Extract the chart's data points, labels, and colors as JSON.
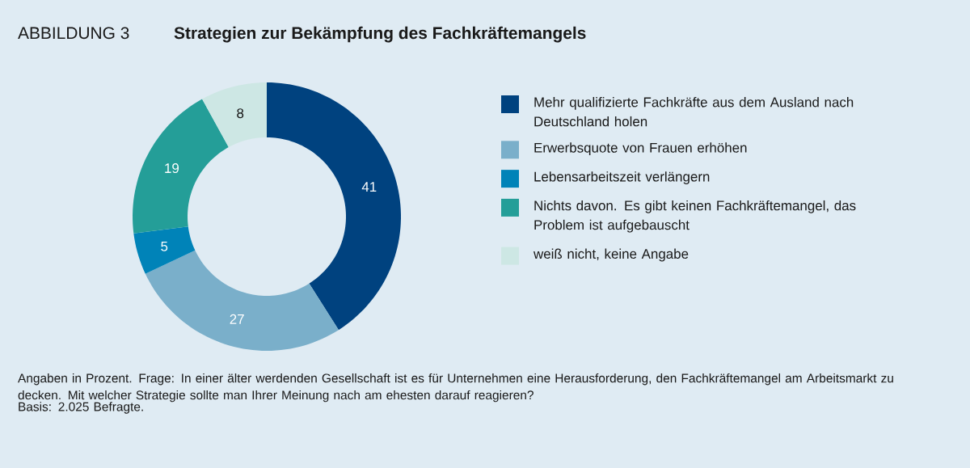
{
  "chart_data": {
    "type": "donut",
    "title": "ABBILDUNG 3",
    "subtitle": "Strategien zur Bekämpfung des Fachkräftemangels",
    "categories": [
      "Mehr qualifizierte Fachkräfte aus dem Ausland nach Deutschland holen",
      "Erwerbsquote von Frauen erhöhen",
      "Lebensarbeitszeit verlängern",
      "Nichts davon. Es gibt keinen Fachkräftemangel, das Problem ist aufgebauscht",
      "weiß nicht, keine Angabe"
    ],
    "values": [
      41,
      27,
      5,
      19,
      8
    ],
    "colors": [
      "#00427f",
      "#7aafca",
      "#0083b8",
      "#249e98",
      "#cde7e4"
    ],
    "data_labels": true,
    "legend": "right",
    "annotations": [
      "Angaben in Prozent. Frage: In einer älter werdenden Gesellschaft ist es für Unternehmen eine Herausforderung, den Fachkräftemangel am Arbeitsmarkt zu decken. Mit welcher Strategie sollte man Ihrer Meinung nach am ehesten darauf reagieren?",
      "Basis: 2.025 Befragte."
    ]
  }
}
